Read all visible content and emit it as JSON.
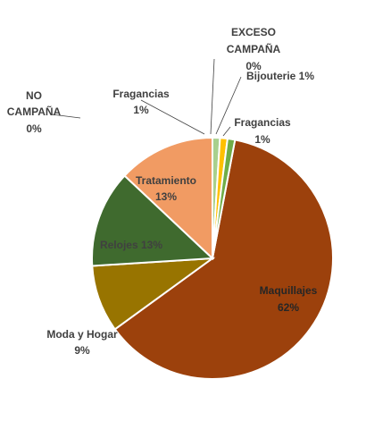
{
  "chart_data": {
    "type": "pie",
    "title": "",
    "slices": [
      {
        "name": "Maquillajes",
        "value": 62,
        "label": "62%",
        "color": "#9C410C"
      },
      {
        "name": "Moda y Hogar",
        "value": 9,
        "label": "9%",
        "color": "#987400"
      },
      {
        "name": "Relojes",
        "value": 13,
        "label": "13%",
        "color": "#3F6A2E"
      },
      {
        "name": "Tratamiento",
        "value": 13,
        "label": "13%",
        "color": "#F19B63"
      },
      {
        "name": "NO CAMPAÑA",
        "value": 0,
        "label": "0%",
        "color": "#FFFFFF"
      },
      {
        "name": "Fragancias",
        "value": 1,
        "label": "1%",
        "color": "#A8D08D"
      },
      {
        "name": "EXCESO CAMPAÑA",
        "value": 0,
        "label": "0%",
        "color": "#FFFFFF"
      },
      {
        "name": "Bijouterie",
        "value": 1,
        "label": "1%",
        "color": "#FFC000"
      },
      {
        "name": "Fragancias",
        "value": 1,
        "label": "1%",
        "color": "#70AD47"
      }
    ],
    "labels_text": {
      "maquillajes_name": "Maquillajes",
      "maquillajes_pct": "62%",
      "moda_name": "Moda y Hogar",
      "moda_pct": "9%",
      "relojes": "Relojes 13%",
      "tratamiento_name": "Tratamiento",
      "tratamiento_pct": "13%",
      "no_campana_1": "NO",
      "no_campana_2": "CAMPAÑA",
      "no_campana_pct": "0%",
      "fragancias_a_name": "Fragancias",
      "fragancias_a_pct": "1%",
      "exceso_1": "EXCESO",
      "exceso_2": "CAMPAÑA",
      "exceso_pct": "0%",
      "bijouterie": "Bijouterie 1%",
      "fragancias_b_name": "Fragancias",
      "fragancias_b_pct": "1%"
    }
  }
}
